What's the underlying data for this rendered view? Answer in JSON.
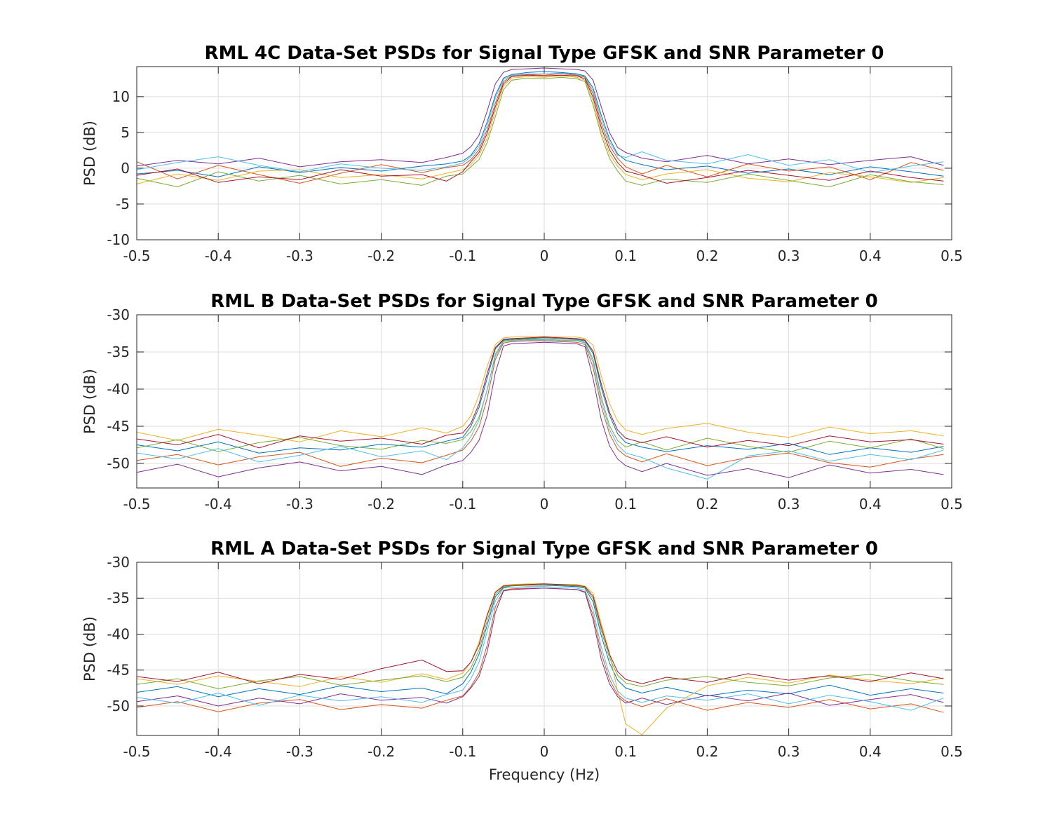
{
  "chart_data": [
    {
      "type": "line",
      "title": "RML 4C Data-Set PSDs for Signal Type GFSK and SNR Parameter 0",
      "xlabel": "",
      "ylabel": "PSD (dB)",
      "xlim": [
        -0.5,
        0.5
      ],
      "ylim": [
        -10,
        14.2
      ],
      "xticks": [
        -0.5,
        -0.4,
        -0.3,
        -0.2,
        -0.1,
        0,
        0.1,
        0.2,
        0.3,
        0.4,
        0.5
      ],
      "xtick_labels": [
        "-0.5",
        "-0.4",
        "-0.3",
        "-0.2",
        "-0.1",
        "0",
        "0.1",
        "0.2",
        "0.3",
        "0.4",
        "0.5"
      ],
      "yticks": [
        -10,
        -5,
        0,
        5,
        10
      ],
      "ytick_labels": [
        "-10",
        "-5",
        "0",
        "5",
        "10"
      ],
      "grid": true,
      "x": [
        -0.5,
        -0.45,
        -0.4,
        -0.35,
        -0.3,
        -0.25,
        -0.2,
        -0.15,
        -0.12,
        -0.1,
        -0.09,
        -0.08,
        -0.07,
        -0.06,
        -0.05,
        -0.04,
        -0.02,
        0,
        0.02,
        0.04,
        0.05,
        0.06,
        0.07,
        0.08,
        0.09,
        0.1,
        0.12,
        0.15,
        0.2,
        0.25,
        0.3,
        0.35,
        0.4,
        0.45,
        0.49
      ],
      "series": [
        {
          "color": "#0072BD",
          "values": [
            -0.8,
            -0.3,
            -1.2,
            0.2,
            -0.6,
            0.1,
            -0.4,
            0.3,
            0.6,
            1.0,
            1.8,
            3.4,
            6.5,
            10.2,
            12.6,
            13.1,
            13.4,
            13.5,
            13.4,
            13.2,
            12.9,
            11.2,
            7.4,
            4.1,
            2.0,
            1.1,
            0.5,
            -0.2,
            0.3,
            -0.7,
            -0.1,
            -0.9,
            0.2,
            -0.5,
            -1.1
          ]
        },
        {
          "color": "#D95319",
          "values": [
            0.9,
            -1.5,
            0.4,
            -0.9,
            -2.1,
            -0.7,
            0.5,
            -0.6,
            0.1,
            0.4,
            1.2,
            2.6,
            5.4,
            9.1,
            12.1,
            12.9,
            13.1,
            13.0,
            13.2,
            13.0,
            12.7,
            10.4,
            6.3,
            3.2,
            1.4,
            0.2,
            -0.8,
            0.4,
            -1.2,
            0.6,
            -0.4,
            0.2,
            -1.6,
            0.8,
            -0.3
          ]
        },
        {
          "color": "#EDB120",
          "values": [
            -2.2,
            -0.8,
            -1.7,
            -0.4,
            -0.2,
            -1.3,
            -0.9,
            -1.5,
            -0.7,
            -0.2,
            0.5,
            1.8,
            4.2,
            8.0,
            11.5,
            12.6,
            12.8,
            12.7,
            12.9,
            12.7,
            12.3,
            9.4,
            5.1,
            2.0,
            0.3,
            -0.9,
            -1.6,
            -0.8,
            -0.2,
            -1.4,
            -1.9,
            -0.6,
            -1.2,
            -2.0,
            -1.3
          ]
        },
        {
          "color": "#7E2F8E",
          "values": [
            0.3,
            1.1,
            0.6,
            1.4,
            0.2,
            0.9,
            1.2,
            0.8,
            1.5,
            2.1,
            3.0,
            4.6,
            8.0,
            11.8,
            13.4,
            13.8,
            13.9,
            14.0,
            13.9,
            13.8,
            13.6,
            12.3,
            8.6,
            5.0,
            2.9,
            2.2,
            1.4,
            0.9,
            1.8,
            0.6,
            1.3,
            0.5,
            1.1,
            1.6,
            0.4
          ]
        },
        {
          "color": "#77AC30",
          "values": [
            -1.4,
            -2.6,
            -0.5,
            -1.8,
            -1.0,
            -2.2,
            -1.6,
            -2.4,
            -1.1,
            -0.8,
            0.2,
            1.2,
            3.6,
            7.2,
            11.0,
            12.3,
            12.6,
            12.5,
            12.7,
            12.5,
            12.1,
            8.8,
            4.6,
            1.4,
            -0.4,
            -1.8,
            -2.4,
            -1.5,
            -2.0,
            -0.8,
            -1.7,
            -2.6,
            -0.9,
            -1.9,
            -2.3
          ]
        },
        {
          "color": "#4DBEEE",
          "values": [
            -0.2,
            0.8,
            1.6,
            0.4,
            -0.5,
            0.6,
            0.0,
            -0.3,
            0.2,
            0.7,
            1.6,
            3.0,
            6.0,
            9.8,
            12.4,
            13.0,
            13.2,
            13.2,
            13.3,
            13.1,
            12.8,
            10.8,
            6.9,
            3.7,
            1.8,
            1.5,
            2.3,
            1.1,
            0.6,
            1.9,
            0.4,
            1.2,
            -0.6,
            0.3,
            0.9
          ]
        },
        {
          "color": "#A2142F",
          "values": [
            -1.0,
            -0.1,
            -2.0,
            -1.2,
            -1.6,
            -0.2,
            -1.1,
            -0.9,
            -1.8,
            -0.5,
            0.9,
            2.2,
            4.9,
            8.6,
            11.8,
            12.8,
            13.0,
            12.9,
            13.0,
            12.9,
            12.5,
            9.9,
            5.7,
            2.6,
            0.8,
            -0.4,
            -1.0,
            -2.1,
            -1.3,
            -0.3,
            -1.0,
            -1.7,
            -0.4,
            -1.3,
            -1.8
          ]
        }
      ]
    },
    {
      "type": "line",
      "title": "RML B Data-Set PSDs for Signal Type GFSK and SNR Parameter 0",
      "xlabel": "",
      "ylabel": "PSD (dB)",
      "xlim": [
        -0.5,
        0.5
      ],
      "ylim": [
        -53.3,
        -30
      ],
      "xticks": [
        -0.5,
        -0.4,
        -0.3,
        -0.2,
        -0.1,
        0,
        0.1,
        0.2,
        0.3,
        0.4,
        0.5
      ],
      "xtick_labels": [
        "-0.5",
        "-0.4",
        "-0.3",
        "-0.2",
        "-0.1",
        "0",
        "0.1",
        "0.2",
        "0.3",
        "0.4",
        "0.5"
      ],
      "yticks": [
        -50,
        -45,
        -40,
        -35,
        -30
      ],
      "ytick_labels": [
        "-50",
        "-45",
        "-40",
        "-35",
        "-30"
      ],
      "grid": true,
      "x": [
        -0.5,
        -0.45,
        -0.4,
        -0.35,
        -0.3,
        -0.25,
        -0.2,
        -0.15,
        -0.12,
        -0.1,
        -0.09,
        -0.08,
        -0.07,
        -0.06,
        -0.05,
        -0.04,
        -0.02,
        0,
        0.02,
        0.04,
        0.05,
        0.06,
        0.07,
        0.08,
        0.09,
        0.1,
        0.12,
        0.15,
        0.2,
        0.25,
        0.3,
        0.35,
        0.4,
        0.45,
        0.49
      ],
      "series": [
        {
          "color": "#0072BD",
          "values": [
            -47.5,
            -48.3,
            -47.1,
            -48.6,
            -47.9,
            -48.2,
            -47.4,
            -47.8,
            -47.0,
            -46.5,
            -45.0,
            -42.5,
            -38.5,
            -34.6,
            -33.4,
            -33.3,
            -33.2,
            -33.1,
            -33.2,
            -33.3,
            -33.5,
            -35.2,
            -39.8,
            -43.5,
            -46.0,
            -47.2,
            -47.8,
            -48.4,
            -47.6,
            -48.1,
            -47.3,
            -48.8,
            -47.9,
            -48.5,
            -47.7
          ]
        },
        {
          "color": "#D95319",
          "values": [
            -49.6,
            -48.8,
            -50.2,
            -49.1,
            -48.5,
            -50.4,
            -49.3,
            -49.9,
            -48.9,
            -48.2,
            -47.0,
            -45.1,
            -41.2,
            -36.0,
            -33.8,
            -33.6,
            -33.5,
            -33.5,
            -33.6,
            -33.7,
            -34.0,
            -37.1,
            -42.3,
            -46.0,
            -48.1,
            -49.0,
            -49.8,
            -48.7,
            -50.3,
            -49.2,
            -48.6,
            -49.9,
            -50.5,
            -49.4,
            -48.8
          ]
        },
        {
          "color": "#EDB120",
          "values": [
            -45.8,
            -46.9,
            -45.4,
            -46.2,
            -47.1,
            -45.6,
            -46.4,
            -45.2,
            -45.9,
            -45.0,
            -43.6,
            -40.8,
            -36.9,
            -34.0,
            -33.1,
            -33.0,
            -32.9,
            -32.9,
            -33.0,
            -33.0,
            -33.2,
            -34.1,
            -38.2,
            -41.9,
            -44.3,
            -45.5,
            -46.1,
            -45.3,
            -44.6,
            -45.8,
            -46.5,
            -45.1,
            -46.0,
            -45.6,
            -46.3
          ]
        },
        {
          "color": "#7E2F8E",
          "values": [
            -51.2,
            -50.1,
            -51.8,
            -50.6,
            -49.8,
            -51.0,
            -50.4,
            -51.5,
            -50.2,
            -49.6,
            -48.5,
            -46.9,
            -43.5,
            -37.8,
            -34.2,
            -33.9,
            -33.8,
            -33.7,
            -33.8,
            -33.9,
            -34.3,
            -38.6,
            -44.1,
            -47.6,
            -49.4,
            -50.3,
            -51.1,
            -50.0,
            -51.6,
            -50.7,
            -51.9,
            -50.2,
            -51.3,
            -50.8,
            -51.5
          ]
        },
        {
          "color": "#77AC30",
          "values": [
            -47.9,
            -46.8,
            -48.4,
            -47.2,
            -46.5,
            -47.6,
            -48.1,
            -46.9,
            -47.3,
            -46.8,
            -45.7,
            -43.8,
            -40.1,
            -35.3,
            -33.5,
            -33.4,
            -33.3,
            -33.3,
            -33.4,
            -33.4,
            -33.7,
            -36.0,
            -41.0,
            -44.9,
            -46.9,
            -47.8,
            -47.1,
            -48.2,
            -46.6,
            -47.7,
            -48.5,
            -47.0,
            -47.9,
            -46.7,
            -48.0
          ]
        },
        {
          "color": "#4DBEEE",
          "values": [
            -48.6,
            -49.4,
            -48.0,
            -49.8,
            -48.9,
            -47.7,
            -49.1,
            -48.3,
            -49.5,
            -47.9,
            -46.4,
            -44.2,
            -40.0,
            -35.6,
            -33.6,
            -33.5,
            -33.4,
            -33.4,
            -33.5,
            -33.5,
            -33.8,
            -36.4,
            -41.6,
            -45.4,
            -47.5,
            -48.6,
            -49.2,
            -50.6,
            -52.1,
            -49.0,
            -48.3,
            -49.7,
            -48.8,
            -49.5,
            -48.2
          ]
        },
        {
          "color": "#A2142F",
          "values": [
            -46.7,
            -47.5,
            -46.1,
            -47.9,
            -46.3,
            -47.0,
            -46.6,
            -47.4,
            -46.2,
            -45.9,
            -44.6,
            -42.0,
            -37.9,
            -34.4,
            -33.3,
            -33.2,
            -33.1,
            -33.0,
            -33.1,
            -33.2,
            -33.4,
            -34.9,
            -39.3,
            -43.1,
            -45.5,
            -46.6,
            -47.2,
            -46.4,
            -47.8,
            -46.9,
            -47.6,
            -46.3,
            -47.1,
            -46.8,
            -47.4
          ]
        }
      ]
    },
    {
      "type": "line",
      "title": "RML A Data-Set PSDs for Signal Type GFSK and SNR Parameter 0",
      "xlabel": "Frequency (Hz)",
      "ylabel": "PSD (dB)",
      "xlim": [
        -0.5,
        0.5
      ],
      "ylim": [
        -54.1,
        -30
      ],
      "xticks": [
        -0.5,
        -0.4,
        -0.3,
        -0.2,
        -0.1,
        0,
        0.1,
        0.2,
        0.3,
        0.4,
        0.5
      ],
      "xtick_labels": [
        "-0.5",
        "-0.4",
        "-0.3",
        "-0.2",
        "-0.1",
        "0",
        "0.1",
        "0.2",
        "0.3",
        "0.4",
        "0.5"
      ],
      "yticks": [
        -50,
        -45,
        -40,
        -35,
        -30
      ],
      "ytick_labels": [
        "-50",
        "-45",
        "-40",
        "-35",
        "-30"
      ],
      "grid": true,
      "x": [
        -0.5,
        -0.45,
        -0.4,
        -0.35,
        -0.3,
        -0.25,
        -0.2,
        -0.15,
        -0.12,
        -0.1,
        -0.09,
        -0.08,
        -0.07,
        -0.06,
        -0.05,
        -0.04,
        -0.02,
        0,
        0.02,
        0.04,
        0.05,
        0.06,
        0.07,
        0.08,
        0.09,
        0.1,
        0.12,
        0.15,
        0.2,
        0.25,
        0.3,
        0.35,
        0.4,
        0.45,
        0.49
      ],
      "series": [
        {
          "color": "#0072BD",
          "values": [
            -48.1,
            -47.3,
            -48.7,
            -47.6,
            -48.4,
            -47.2,
            -48.0,
            -47.5,
            -48.3,
            -46.9,
            -45.3,
            -42.8,
            -38.7,
            -34.8,
            -33.5,
            -33.3,
            -33.2,
            -33.2,
            -33.3,
            -33.4,
            -33.6,
            -35.5,
            -40.2,
            -44.0,
            -46.4,
            -47.5,
            -48.2,
            -47.4,
            -48.6,
            -47.8,
            -48.3,
            -47.1,
            -48.5,
            -47.6,
            -48.2
          ]
        },
        {
          "color": "#D95319",
          "values": [
            -50.2,
            -49.4,
            -50.8,
            -49.6,
            -49.1,
            -50.5,
            -49.8,
            -50.3,
            -49.2,
            -48.6,
            -47.3,
            -45.4,
            -41.5,
            -36.2,
            -33.9,
            -33.7,
            -33.6,
            -33.6,
            -33.7,
            -33.8,
            -34.1,
            -37.4,
            -42.6,
            -46.3,
            -48.4,
            -49.3,
            -50.1,
            -49.0,
            -50.6,
            -49.5,
            -50.2,
            -49.1,
            -50.4,
            -49.7,
            -50.9
          ]
        },
        {
          "color": "#EDB120",
          "values": [
            -46.2,
            -47.0,
            -45.8,
            -46.6,
            -47.3,
            -45.9,
            -46.7,
            -45.5,
            -46.3,
            -45.4,
            -43.9,
            -41.1,
            -37.2,
            -34.1,
            -33.2,
            -33.1,
            -33.0,
            -33.0,
            -33.1,
            -33.1,
            -33.3,
            -34.3,
            -38.5,
            -42.6,
            -47.9,
            -52.5,
            -54.0,
            -50.3,
            -47.2,
            -46.0,
            -46.8,
            -45.7,
            -46.4,
            -46.9,
            -46.1
          ]
        },
        {
          "color": "#7E2F8E",
          "values": [
            -49.4,
            -48.6,
            -50.0,
            -48.9,
            -49.7,
            -48.3,
            -49.2,
            -48.8,
            -49.6,
            -48.7,
            -47.5,
            -45.9,
            -42.4,
            -37.0,
            -34.0,
            -33.8,
            -33.7,
            -33.6,
            -33.7,
            -33.8,
            -34.2,
            -38.0,
            -43.5,
            -46.9,
            -48.7,
            -49.6,
            -48.9,
            -49.8,
            -48.5,
            -49.3,
            -48.2,
            -49.9,
            -49.1,
            -48.4,
            -49.5
          ]
        },
        {
          "color": "#77AC30",
          "values": [
            -47.0,
            -46.2,
            -47.6,
            -46.5,
            -45.9,
            -47.1,
            -46.4,
            -45.8,
            -46.6,
            -46.0,
            -44.7,
            -42.2,
            -38.1,
            -34.5,
            -33.4,
            -33.3,
            -33.2,
            -33.1,
            -33.2,
            -33.3,
            -33.5,
            -35.0,
            -39.5,
            -43.3,
            -45.7,
            -46.8,
            -47.3,
            -46.4,
            -45.9,
            -46.7,
            -47.2,
            -46.1,
            -45.6,
            -46.5,
            -47.0
          ]
        },
        {
          "color": "#4DBEEE",
          "values": [
            -48.8,
            -49.6,
            -48.2,
            -49.9,
            -48.5,
            -49.3,
            -48.7,
            -49.5,
            -48.4,
            -47.8,
            -46.2,
            -43.9,
            -39.6,
            -35.4,
            -33.6,
            -33.5,
            -33.4,
            -33.4,
            -33.5,
            -33.6,
            -33.9,
            -36.6,
            -41.8,
            -45.6,
            -47.9,
            -48.9,
            -49.5,
            -48.6,
            -49.2,
            -48.3,
            -49.7,
            -48.5,
            -49.4,
            -50.6,
            -48.9
          ]
        },
        {
          "color": "#A2142F",
          "values": [
            -45.9,
            -46.6,
            -45.3,
            -46.9,
            -45.6,
            -46.3,
            -44.8,
            -43.6,
            -45.2,
            -45.1,
            -43.9,
            -41.5,
            -37.4,
            -34.2,
            -33.3,
            -33.2,
            -33.1,
            -33.0,
            -33.1,
            -33.2,
            -33.4,
            -34.7,
            -39.0,
            -42.8,
            -45.2,
            -46.3,
            -46.9,
            -46.0,
            -46.7,
            -45.5,
            -46.4,
            -45.8,
            -46.6,
            -45.4,
            -46.2
          ]
        }
      ]
    }
  ]
}
